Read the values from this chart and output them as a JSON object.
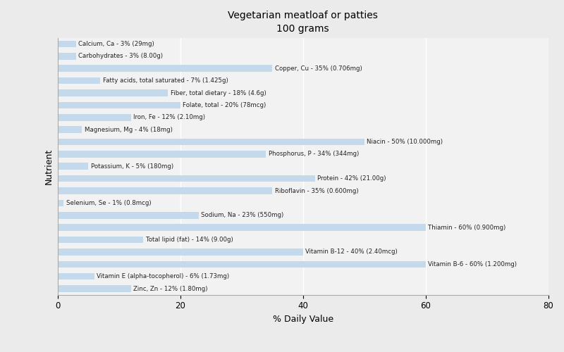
{
  "title": "Vegetarian meatloaf or patties\n100 grams",
  "xlabel": "% Daily Value",
  "ylabel": "Nutrient",
  "xlim": [
    0,
    80
  ],
  "bar_color": "#c5d9ed",
  "bg_color": "#ebebeb",
  "plot_bg_color": "#f2f2f2",
  "nutrients": [
    {
      "label": "Calcium, Ca - 3% (29mg)",
      "value": 3
    },
    {
      "label": "Carbohydrates - 3% (8.00g)",
      "value": 3
    },
    {
      "label": "Copper, Cu - 35% (0.706mg)",
      "value": 35
    },
    {
      "label": "Fatty acids, total saturated - 7% (1.425g)",
      "value": 7
    },
    {
      "label": "Fiber, total dietary - 18% (4.6g)",
      "value": 18
    },
    {
      "label": "Folate, total - 20% (78mcg)",
      "value": 20
    },
    {
      "label": "Iron, Fe - 12% (2.10mg)",
      "value": 12
    },
    {
      "label": "Magnesium, Mg - 4% (18mg)",
      "value": 4
    },
    {
      "label": "Niacin - 50% (10.000mg)",
      "value": 50
    },
    {
      "label": "Phosphorus, P - 34% (344mg)",
      "value": 34
    },
    {
      "label": "Potassium, K - 5% (180mg)",
      "value": 5
    },
    {
      "label": "Protein - 42% (21.00g)",
      "value": 42
    },
    {
      "label": "Riboflavin - 35% (0.600mg)",
      "value": 35
    },
    {
      "label": "Selenium, Se - 1% (0.8mcg)",
      "value": 1
    },
    {
      "label": "Sodium, Na - 23% (550mg)",
      "value": 23
    },
    {
      "label": "Thiamin - 60% (0.900mg)",
      "value": 60
    },
    {
      "label": "Total lipid (fat) - 14% (9.00g)",
      "value": 14
    },
    {
      "label": "Vitamin B-12 - 40% (2.40mcg)",
      "value": 40
    },
    {
      "label": "Vitamin B-6 - 60% (1.200mg)",
      "value": 60
    },
    {
      "label": "Vitamin E (alpha-tocopherol) - 6% (1.73mg)",
      "value": 6
    },
    {
      "label": "Zinc, Zn - 12% (1.80mg)",
      "value": 12
    }
  ]
}
